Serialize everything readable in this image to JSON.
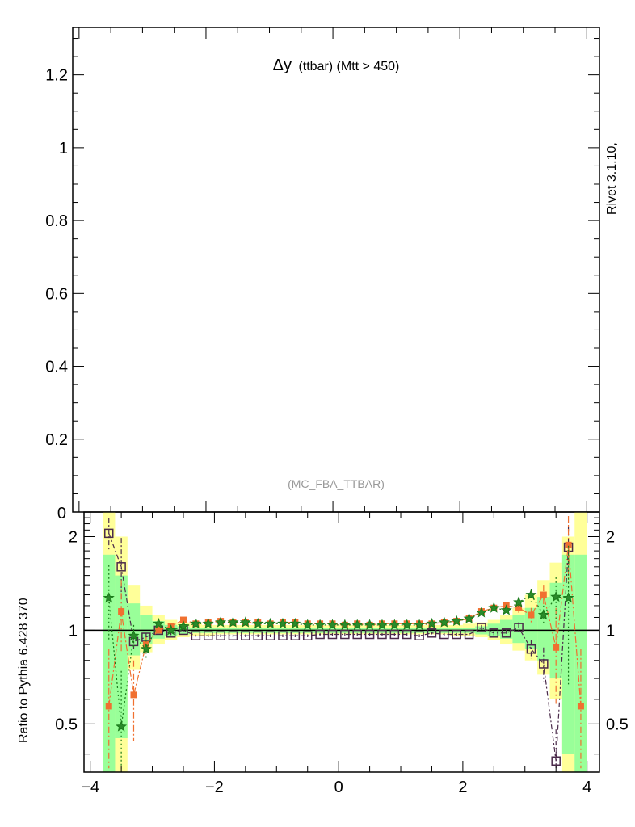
{
  "chart_data": [
    {
      "type": "line",
      "panel": "main",
      "title": "Δy (ttbar) (Mtt > 450)",
      "title_main": "Δy",
      "title_sub": "(ttbar) (Mtt > 450)",
      "analysis_label": "(MC_FBA_TTBAR)",
      "side_label": "Rivet 3.1.10,",
      "xlim": [
        -4.1,
        4.2
      ],
      "ylim": [
        0,
        1.33
      ],
      "yticks": [
        {
          "v": 0.2,
          "label": "0.2"
        },
        {
          "v": 0.4,
          "label": "0.4"
        },
        {
          "v": 0.6,
          "label": "0.6"
        },
        {
          "v": 0.8,
          "label": "0.8"
        },
        {
          "v": 1.0,
          "label": "1"
        },
        {
          "v": 1.2,
          "label": "1.2"
        }
      ],
      "yzero_label": "0"
    },
    {
      "type": "line",
      "panel": "ratio",
      "ylabel": "Ratio to Pythia 6.428 370",
      "log_y": true,
      "xlim": [
        -4.1,
        4.2
      ],
      "ylim": [
        0.35,
        2.4
      ],
      "xticks": [
        {
          "v": -4,
          "label": "−4"
        },
        {
          "v": -2,
          "label": "−2"
        },
        {
          "v": 0,
          "label": "0"
        },
        {
          "v": 2,
          "label": "2"
        },
        {
          "v": 4,
          "label": "4"
        }
      ],
      "yticks": [
        {
          "v": 0.5,
          "label": "0.5"
        },
        {
          "v": 1,
          "label": "1"
        },
        {
          "v": 2,
          "label": "2"
        }
      ],
      "band_edges": [
        -3.8,
        -3.6,
        -3.4,
        -3.2,
        -3.0,
        -2.8,
        -2.6,
        -2.4,
        -2.2,
        -2.0,
        -1.8,
        -1.6,
        -1.4,
        -1.2,
        -1.0,
        -0.8,
        -0.6,
        -0.4,
        -0.2,
        0.0,
        0.2,
        0.4,
        0.6,
        0.8,
        1.0,
        1.2,
        1.4,
        1.6,
        1.8,
        2.0,
        2.2,
        2.4,
        2.6,
        2.8,
        3.0,
        3.2,
        3.4,
        3.6,
        3.8,
        4.0
      ],
      "band_yellow": [
        [
          0.35,
          2.4
        ],
        [
          0.35,
          2.0
        ],
        [
          0.75,
          1.4
        ],
        [
          0.85,
          1.2
        ],
        [
          0.9,
          1.12
        ],
        [
          0.93,
          1.08
        ],
        [
          0.95,
          1.06
        ],
        [
          0.96,
          1.05
        ],
        [
          0.96,
          1.04
        ],
        [
          0.97,
          1.04
        ],
        [
          0.97,
          1.04
        ],
        [
          0.97,
          1.04
        ],
        [
          0.97,
          1.04
        ],
        [
          0.97,
          1.04
        ],
        [
          0.97,
          1.04
        ],
        [
          0.97,
          1.04
        ],
        [
          0.97,
          1.04
        ],
        [
          0.97,
          1.04
        ],
        [
          0.97,
          1.04
        ],
        [
          0.97,
          1.04
        ],
        [
          0.97,
          1.04
        ],
        [
          0.97,
          1.04
        ],
        [
          0.97,
          1.04
        ],
        [
          0.97,
          1.04
        ],
        [
          0.97,
          1.04
        ],
        [
          0.97,
          1.04
        ],
        [
          0.97,
          1.04
        ],
        [
          0.97,
          1.04
        ],
        [
          0.96,
          1.04
        ],
        [
          0.96,
          1.05
        ],
        [
          0.95,
          1.06
        ],
        [
          0.93,
          1.08
        ],
        [
          0.9,
          1.12
        ],
        [
          0.86,
          1.18
        ],
        [
          0.8,
          1.3
        ],
        [
          0.72,
          1.45
        ],
        [
          0.6,
          1.65
        ],
        [
          0.35,
          2.0
        ],
        [
          0.35,
          2.4
        ]
      ],
      "band_green": [
        [
          0.35,
          1.75
        ],
        [
          0.45,
          1.5
        ],
        [
          0.83,
          1.22
        ],
        [
          0.9,
          1.12
        ],
        [
          0.94,
          1.07
        ],
        [
          0.96,
          1.04
        ],
        [
          0.97,
          1.03
        ],
        [
          0.98,
          1.02
        ],
        [
          0.98,
          1.02
        ],
        [
          0.98,
          1.02
        ],
        [
          0.98,
          1.02
        ],
        [
          0.98,
          1.02
        ],
        [
          0.98,
          1.02
        ],
        [
          0.98,
          1.02
        ],
        [
          0.98,
          1.02
        ],
        [
          0.98,
          1.02
        ],
        [
          0.98,
          1.02
        ],
        [
          0.98,
          1.02
        ],
        [
          0.98,
          1.02
        ],
        [
          0.98,
          1.02
        ],
        [
          0.98,
          1.02
        ],
        [
          0.98,
          1.02
        ],
        [
          0.98,
          1.02
        ],
        [
          0.98,
          1.02
        ],
        [
          0.98,
          1.02
        ],
        [
          0.98,
          1.02
        ],
        [
          0.98,
          1.02
        ],
        [
          0.98,
          1.02
        ],
        [
          0.98,
          1.02
        ],
        [
          0.98,
          1.02
        ],
        [
          0.97,
          1.03
        ],
        [
          0.96,
          1.05
        ],
        [
          0.94,
          1.08
        ],
        [
          0.91,
          1.12
        ],
        [
          0.87,
          1.18
        ],
        [
          0.8,
          1.28
        ],
        [
          0.7,
          1.42
        ],
        [
          0.4,
          1.75
        ],
        [
          0.35,
          1.75
        ]
      ],
      "series": [
        {
          "style": "open-square",
          "color": "#4a2a4a",
          "x": [
            -3.7,
            -3.5,
            -3.3,
            -3.1,
            -2.9,
            -2.7,
            -2.5,
            -2.3,
            -2.1,
            -1.9,
            -1.7,
            -1.5,
            -1.3,
            -1.1,
            -0.9,
            -0.7,
            -0.5,
            -0.3,
            -0.1,
            0.1,
            0.3,
            0.5,
            0.7,
            0.9,
            1.1,
            1.3,
            1.5,
            1.7,
            1.9,
            2.1,
            2.3,
            2.5,
            2.7,
            2.9,
            3.1,
            3.3,
            3.5,
            3.7
          ],
          "y": [
            2.05,
            1.6,
            0.92,
            0.95,
            1.0,
            0.98,
            1.0,
            0.96,
            0.96,
            0.96,
            0.96,
            0.96,
            0.96,
            0.96,
            0.96,
            0.96,
            0.96,
            0.97,
            0.97,
            0.97,
            0.97,
            0.97,
            0.97,
            0.97,
            0.97,
            0.96,
            0.98,
            0.97,
            0.97,
            0.97,
            1.02,
            0.98,
            0.98,
            1.02,
            0.87,
            0.78,
            0.38,
            1.85
          ],
          "err": [
            0.25,
            0.38,
            0.05,
            0.03,
            0.02,
            0.02,
            0.01,
            0.01,
            0.01,
            0.01,
            0.01,
            0.01,
            0.01,
            0.01,
            0.01,
            0.01,
            0.01,
            0.01,
            0.01,
            0.01,
            0.01,
            0.01,
            0.01,
            0.01,
            0.01,
            0.01,
            0.01,
            0.01,
            0.01,
            0.01,
            0.02,
            0.02,
            0.03,
            0.04,
            0.06,
            0.1,
            0.1,
            0.3
          ]
        },
        {
          "style": "filled-square",
          "color": "#f07030",
          "x": [
            -3.7,
            -3.5,
            -3.3,
            -3.1,
            -2.9,
            -2.7,
            -2.5,
            -2.3,
            -2.1,
            -1.9,
            -1.7,
            -1.5,
            -1.3,
            -1.1,
            -0.9,
            -0.7,
            -0.5,
            -0.3,
            -0.1,
            0.1,
            0.3,
            0.5,
            0.7,
            0.9,
            1.1,
            1.3,
            1.5,
            1.7,
            1.9,
            2.1,
            2.3,
            2.5,
            2.7,
            2.9,
            3.1,
            3.3,
            3.5,
            3.7,
            3.9
          ],
          "y": [
            0.57,
            1.15,
            0.62,
            0.9,
            1.0,
            1.03,
            1.08,
            1.05,
            1.06,
            1.07,
            1.06,
            1.06,
            1.06,
            1.05,
            1.06,
            1.06,
            1.05,
            1.05,
            1.05,
            1.04,
            1.05,
            1.04,
            1.05,
            1.05,
            1.05,
            1.05,
            1.05,
            1.06,
            1.07,
            1.09,
            1.15,
            1.18,
            1.2,
            1.18,
            1.12,
            1.3,
            0.88,
            1.88,
            0.57
          ],
          "err": [
            0.3,
            0.3,
            0.18,
            0.05,
            0.03,
            0.02,
            0.02,
            0.01,
            0.01,
            0.01,
            0.01,
            0.01,
            0.01,
            0.01,
            0.01,
            0.01,
            0.01,
            0.01,
            0.01,
            0.01,
            0.01,
            0.01,
            0.01,
            0.01,
            0.01,
            0.01,
            0.01,
            0.01,
            0.01,
            0.01,
            0.02,
            0.02,
            0.03,
            0.05,
            0.06,
            0.1,
            0.3,
            0.45,
            0.3
          ]
        },
        {
          "style": "star",
          "color": "#1a7a1a",
          "fill": "#2a8a2a",
          "x": [
            -3.7,
            -3.5,
            -3.3,
            -3.1,
            -2.9,
            -2.7,
            -2.5,
            -2.3,
            -2.1,
            -1.9,
            -1.7,
            -1.5,
            -1.3,
            -1.1,
            -0.9,
            -0.7,
            -0.5,
            -0.3,
            -0.1,
            0.1,
            0.3,
            0.5,
            0.7,
            0.9,
            1.1,
            1.3,
            1.5,
            1.7,
            1.9,
            2.1,
            2.3,
            2.5,
            2.7,
            2.9,
            3.1,
            3.3,
            3.5,
            3.7
          ],
          "y": [
            1.27,
            0.49,
            0.96,
            0.87,
            1.05,
            1.0,
            1.03,
            1.05,
            1.05,
            1.06,
            1.06,
            1.06,
            1.05,
            1.05,
            1.05,
            1.05,
            1.04,
            1.04,
            1.04,
            1.04,
            1.04,
            1.04,
            1.04,
            1.04,
            1.04,
            1.04,
            1.05,
            1.06,
            1.07,
            1.09,
            1.14,
            1.18,
            1.16,
            1.23,
            1.3,
            1.12,
            1.28,
            1.27
          ],
          "err": [
            0.35,
            0.25,
            0.08,
            0.06,
            0.03,
            0.02,
            0.02,
            0.01,
            0.01,
            0.01,
            0.01,
            0.01,
            0.01,
            0.01,
            0.01,
            0.01,
            0.01,
            0.01,
            0.01,
            0.01,
            0.01,
            0.01,
            0.01,
            0.01,
            0.01,
            0.01,
            0.01,
            0.01,
            0.01,
            0.01,
            0.02,
            0.02,
            0.03,
            0.05,
            0.06,
            0.08,
            0.2,
            0.6
          ]
        }
      ]
    }
  ]
}
